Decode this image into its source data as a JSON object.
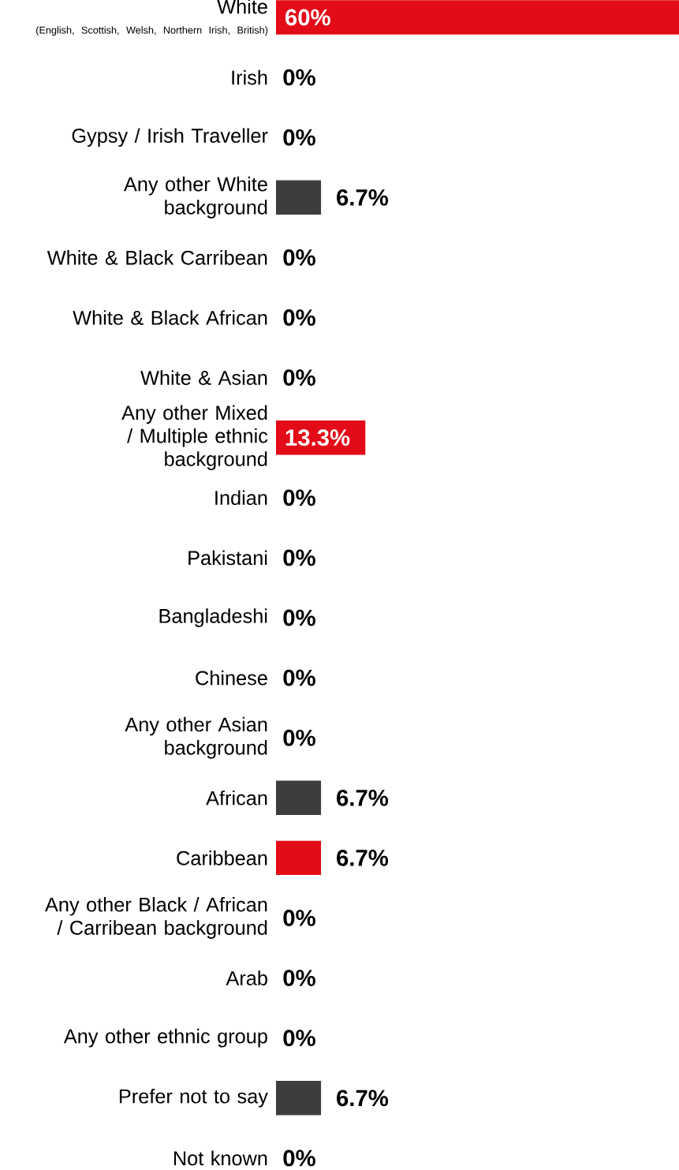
{
  "chart_data": {
    "type": "bar",
    "orientation": "horizontal",
    "categories": [
      "White",
      "Irish",
      "Gypsy / Irish Traveller",
      "Any other White background",
      "White & Black Carribean",
      "White & Black African",
      "White & Asian",
      "Any other Mixed / Multiple ethnic background",
      "Indian",
      "Pakistani",
      "Bangladeshi",
      "Chinese",
      "Any other Asian background",
      "African",
      "Caribbean",
      "Any other Black / African / Carribean background",
      "Arab",
      "Any other ethnic group",
      "Prefer not to say",
      "Not known"
    ],
    "values": [
      60,
      0,
      0,
      6.7,
      0,
      0,
      0,
      13.3,
      0,
      0,
      0,
      0,
      0,
      6.7,
      6.7,
      0,
      0,
      0,
      6.7,
      0
    ],
    "colors": [
      "#e30b17",
      "#3d3d3d",
      "#3d3d3d",
      "#3d3d3d",
      "#3d3d3d",
      "#3d3d3d",
      "#3d3d3d",
      "#e30b17",
      "#3d3d3d",
      "#3d3d3d",
      "#3d3d3d",
      "#3d3d3d",
      "#3d3d3d",
      "#3d3d3d",
      "#e30b17",
      "#3d3d3d",
      "#3d3d3d",
      "#3d3d3d",
      "#3d3d3d",
      "#3d3d3d"
    ],
    "value_labels": [
      "60%",
      "0%",
      "0%",
      "6.7%",
      "0%",
      "0%",
      "0%",
      "13.3%",
      "0%",
      "0%",
      "0%",
      "0%",
      "0%",
      "6.7%",
      "6.7%",
      "0%",
      "0%",
      "0%",
      "6.7%",
      "0%"
    ],
    "xlim": [
      0,
      60
    ],
    "annotations": [
      "(English, Scottish, Welsh, Northern Irish, British)"
    ]
  }
}
